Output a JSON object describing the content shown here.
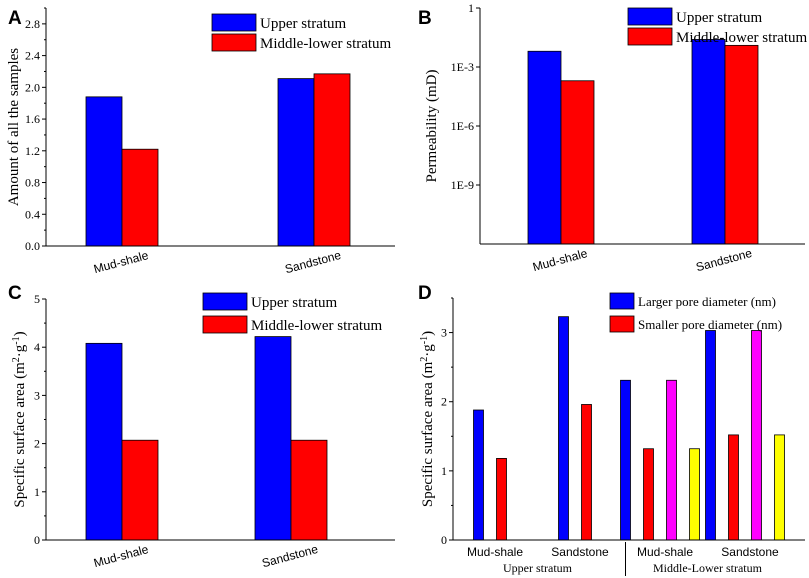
{
  "chart_data": [
    {
      "panel": "A",
      "type": "bar",
      "ylabel": "Amount of all the samples",
      "ylim": [
        0,
        3.0
      ],
      "yticks": [
        0.0,
        0.4,
        0.8,
        1.2,
        1.6,
        2.0,
        2.4,
        2.8
      ],
      "ytick_labels": [
        "0.0",
        "0.4",
        "0.8",
        "1.2",
        "1.6",
        "2.0",
        "2.4",
        "2.8"
      ],
      "categories": [
        "Mud-shale",
        "Sandstone"
      ],
      "series": [
        {
          "name": "Upper stratum",
          "color": "#0000ff",
          "values": [
            1.88,
            2.11
          ]
        },
        {
          "name": "Middle-lower stratum",
          "color": "#ff0000",
          "values": [
            1.22,
            2.17
          ]
        }
      ],
      "legend": "top-right"
    },
    {
      "panel": "B",
      "type": "bar",
      "yscale": "log",
      "ylabel": "Permeability (mD)",
      "ylim_log10": [
        -12,
        0
      ],
      "yticks_log10": [
        0,
        -3,
        -6,
        -9
      ],
      "ytick_labels": [
        "1",
        "1E-3",
        "1E-6",
        "1E-9"
      ],
      "categories": [
        "Mud-shale",
        "Sandstone"
      ],
      "series": [
        {
          "name": "Upper stratum",
          "color": "#0000ff",
          "log10_values": [
            -2.2,
            -1.6
          ]
        },
        {
          "name": "Middle-lower stratum",
          "color": "#ff0000",
          "log10_values": [
            -3.7,
            -1.9
          ]
        }
      ],
      "legend": "top-right"
    },
    {
      "panel": "C",
      "type": "bar",
      "ylabel_parts": [
        "Specific surface area (m",
        "2",
        "·g",
        "-1",
        ")"
      ],
      "ylim": [
        0,
        5
      ],
      "yticks": [
        0,
        1,
        2,
        3,
        4,
        5
      ],
      "ytick_labels": [
        "0",
        "1",
        "2",
        "3",
        "4",
        "5"
      ],
      "categories": [
        "Mud-shale",
        "Sandstone"
      ],
      "series": [
        {
          "name": "Upper stratum",
          "color": "#0000ff",
          "values": [
            4.08,
            4.22
          ]
        },
        {
          "name": "Middle-lower stratum",
          "color": "#ff0000",
          "values": [
            2.07,
            2.07
          ]
        }
      ],
      "legend": "top-right"
    },
    {
      "panel": "D",
      "type": "bar",
      "ylabel_parts": [
        "Specific surface area (m",
        "2",
        "·g",
        "-1",
        ")"
      ],
      "ylim": [
        0,
        3.5
      ],
      "yticks": [
        0,
        1,
        2,
        3
      ],
      "ytick_labels": [
        "0",
        "1",
        "2",
        "3"
      ],
      "categories": [
        "Mud-shale",
        "Sandstone",
        "Mud-shale",
        "Sandstone"
      ],
      "groups": [
        "Upper stratum",
        "Middle-Lower stratum"
      ],
      "series": [
        {
          "name": "Larger pore diameter (nm)",
          "color": "#0000ff",
          "values": [
            1.88,
            3.23,
            2.31,
            3.03
          ]
        },
        {
          "name": "Smaller pore diameter (nm)",
          "color": "#ff0000",
          "values": [
            1.18,
            1.96,
            1.32,
            1.52
          ]
        },
        {
          "name": "",
          "color": "#ff00ff",
          "values": [
            null,
            null,
            2.31,
            3.03
          ]
        },
        {
          "name": "",
          "color": "#ffff00",
          "values": [
            null,
            null,
            1.32,
            1.52
          ]
        }
      ],
      "legend": "top-right"
    }
  ]
}
